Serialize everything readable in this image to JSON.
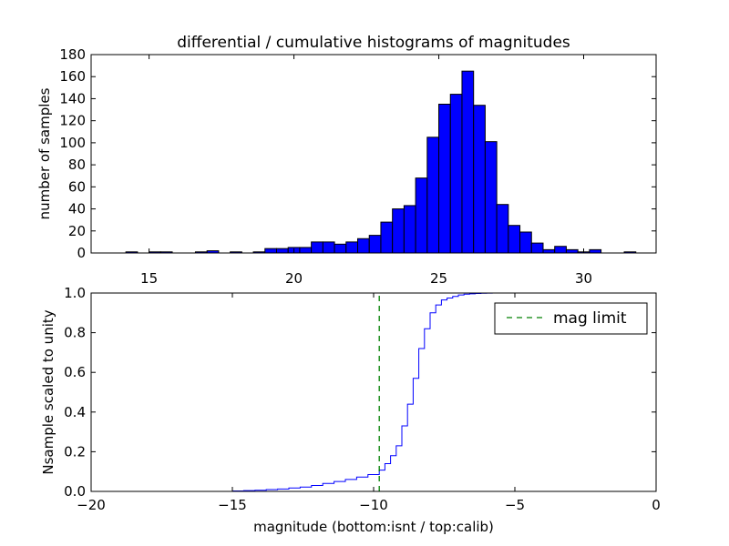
{
  "chart_data": [
    {
      "type": "bar",
      "title": "differential / cumulative histograms of magnitudes",
      "xlabel": "",
      "ylabel": "number of samples",
      "xlim": [
        13,
        32.5
      ],
      "ylim": [
        0,
        180
      ],
      "xticks": [
        15,
        20,
        25,
        30
      ],
      "yticks": [
        0,
        20,
        40,
        60,
        80,
        100,
        120,
        140,
        160,
        180
      ],
      "tick_labels_x": [
        "15",
        "20",
        "25",
        "30"
      ],
      "tick_labels_y": [
        "0",
        "20",
        "40",
        "60",
        "80",
        "100",
        "120",
        "140",
        "160",
        "180"
      ],
      "x_tick_position": "top",
      "bar_color": "#0000ff",
      "edge_color": "#000000",
      "bin_edges": [
        13.0,
        13.4,
        13.8,
        14.2,
        14.6,
        15.0,
        15.4,
        15.8,
        16.2,
        16.6,
        17.0,
        17.4,
        17.8,
        18.2,
        18.6,
        19.0,
        19.4,
        19.8,
        20.2,
        20.6,
        21.0,
        21.4,
        21.8,
        22.2,
        22.6,
        23.0,
        23.4,
        23.8,
        24.2,
        24.6,
        25.0,
        25.4,
        25.8,
        26.2,
        26.6,
        27.0,
        27.4,
        27.8,
        28.2,
        28.6,
        29.0,
        29.4,
        29.8,
        30.2,
        30.6,
        31.0,
        31.4,
        31.8,
        32.2
      ],
      "values": [
        0,
        0,
        0,
        1,
        0,
        1,
        1,
        0,
        0,
        1,
        2,
        0,
        1,
        0,
        1,
        4,
        4,
        5,
        5,
        10,
        10,
        8,
        10,
        13,
        16,
        28,
        40,
        43,
        68,
        105,
        135,
        144,
        165,
        134,
        101,
        44,
        25,
        19,
        9,
        3,
        6,
        3,
        1,
        3,
        0,
        0,
        1,
        0
      ],
      "grid": false
    },
    {
      "type": "line",
      "title": "",
      "xlabel": "magnitude (bottom:isnt / top:calib)",
      "ylabel": "Nsample scaled to unity",
      "xlim": [
        -20,
        0
      ],
      "ylim": [
        0.0,
        1.0
      ],
      "xticks": [
        -20,
        -15,
        -10,
        -5,
        0
      ],
      "yticks": [
        0.0,
        0.2,
        0.4,
        0.6,
        0.8,
        1.0
      ],
      "tick_labels_x": [
        "−20",
        "−15",
        "−10",
        "−5",
        "0"
      ],
      "tick_labels_y": [
        "0.0",
        "0.2",
        "0.4",
        "0.6",
        "0.8",
        "1.0"
      ],
      "grid": false,
      "legend_position": "top-right",
      "series": [
        {
          "name": "",
          "style": "step",
          "color": "#0000ff",
          "x": [
            -20.0,
            -15.2,
            -15.0,
            -14.6,
            -14.2,
            -13.8,
            -13.4,
            -13.0,
            -12.6,
            -12.2,
            -11.8,
            -11.4,
            -11.0,
            -10.6,
            -10.2,
            -9.8,
            -9.6,
            -9.4,
            -9.2,
            -9.0,
            -8.8,
            -8.6,
            -8.4,
            -8.2,
            -8.0,
            -7.8,
            -7.6,
            -7.4,
            -7.2,
            -7.0,
            -6.8,
            -6.6,
            -6.4,
            -6.2,
            -6.0,
            -5.8,
            -5.6,
            0.0
          ],
          "y": [
            0.0,
            0.0,
            0.002,
            0.004,
            0.006,
            0.009,
            0.012,
            0.017,
            0.022,
            0.03,
            0.04,
            0.05,
            0.06,
            0.072,
            0.085,
            0.107,
            0.14,
            0.18,
            0.23,
            0.33,
            0.44,
            0.57,
            0.72,
            0.82,
            0.9,
            0.94,
            0.965,
            0.975,
            0.983,
            0.99,
            0.994,
            0.996,
            0.998,
            0.999,
            0.9995,
            1.0,
            1.0,
            1.0
          ]
        },
        {
          "name": "mag limit",
          "style": "dashed-vertical",
          "color": "#007f00",
          "x": [
            -9.8,
            -9.8
          ],
          "y": [
            0.0,
            1.0
          ]
        }
      ]
    }
  ]
}
